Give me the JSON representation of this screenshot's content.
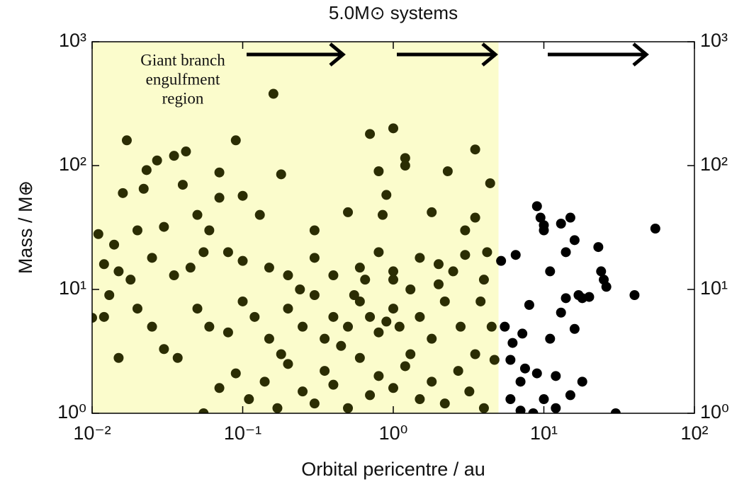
{
  "chart_data": {
    "type": "scatter",
    "title": "5.0M⊙ systems",
    "x_label": "Orbital pericentre / au",
    "y_label": "Mass / M⊕",
    "annotation": [
      "Giant branch",
      "engulfment",
      "region"
    ],
    "xscale": "log",
    "yscale": "log",
    "xlim": [
      0.01,
      100
    ],
    "ylim": [
      1,
      1000
    ],
    "xticks": [
      {
        "value": 0.01,
        "label": "10⁻²"
      },
      {
        "value": 0.1,
        "label": "10⁻¹"
      },
      {
        "value": 1,
        "label": "10⁰"
      },
      {
        "value": 10,
        "label": "10¹"
      },
      {
        "value": 100,
        "label": "10²"
      }
    ],
    "yticks": [
      {
        "value": 1,
        "label": "10⁰"
      },
      {
        "value": 10,
        "label": "10¹"
      },
      {
        "value": 100,
        "label": "10²"
      },
      {
        "value": 1000,
        "label": "10³"
      }
    ],
    "shaded_region": {
      "xlim": [
        0.01,
        5
      ],
      "color": "#fbfccc"
    },
    "series": [
      {
        "color": "#2b2d03",
        "x": [
          0.16,
          0.017,
          0.09,
          0.7,
          1.0,
          0.18,
          0.027,
          0.035,
          0.042,
          0.023,
          0.07,
          0.8,
          1.2,
          1.2,
          2.3,
          3.5,
          4.4,
          0.016,
          0.022,
          0.04,
          0.07,
          0.1,
          0.13,
          0.5,
          0.9,
          1.8,
          0.85,
          3.5,
          3.0,
          0.011,
          0.014,
          0.02,
          0.03,
          0.05,
          0.06,
          0.08,
          0.012,
          0.015,
          0.018,
          0.025,
          0.035,
          0.045,
          0.055,
          0.1,
          0.15,
          0.2,
          0.3,
          0.4,
          0.6,
          0.8,
          1.0,
          1.5,
          2.0,
          2.5,
          3.0,
          4.0,
          0.013,
          0.012,
          0.01,
          0.02,
          0.025,
          0.03,
          0.037,
          0.015,
          0.05,
          0.06,
          0.08,
          0.1,
          0.12,
          0.15,
          0.18,
          0.2,
          0.25,
          0.3,
          0.35,
          0.4,
          0.5,
          0.6,
          0.7,
          0.8,
          0.9,
          1.0,
          1.1,
          1.3,
          1.5,
          1.8,
          2.2,
          2.8,
          3.5,
          4.5,
          0.07,
          0.09,
          0.11,
          0.14,
          0.17,
          0.2,
          0.25,
          0.3,
          0.35,
          0.4,
          0.5,
          0.6,
          0.7,
          0.8,
          1.0,
          1.2,
          1.5,
          1.8,
          2.2,
          2.7,
          3.2,
          4.0,
          4.7,
          0.055,
          0.45,
          0.55,
          1.3,
          2.0,
          0.24,
          0.65,
          3.8,
          4.2,
          0.3,
          1.0
        ],
        "values": [
          380,
          160,
          160,
          180,
          200,
          85,
          110,
          120,
          130,
          92,
          88,
          90,
          100,
          115,
          90,
          135,
          72,
          60,
          65,
          70,
          55,
          57,
          40,
          42,
          58,
          42,
          40,
          38,
          30,
          28,
          23,
          30,
          32,
          40,
          30,
          20,
          16,
          14,
          12,
          18,
          13,
          15,
          20,
          17,
          15,
          13,
          18,
          13,
          15,
          20,
          14,
          18,
          16,
          14,
          19,
          12,
          9,
          6,
          5.9,
          7,
          5,
          3.3,
          2.8,
          2.8,
          7,
          5,
          4.5,
          8,
          6,
          4,
          3,
          7,
          5,
          9,
          4,
          6,
          5,
          8,
          6,
          4.5,
          5.5,
          7,
          5,
          3,
          6,
          4,
          8,
          5,
          3,
          5,
          1.6,
          2.1,
          1.3,
          1.8,
          1.1,
          2.5,
          1.5,
          1.2,
          2.2,
          1.7,
          1.1,
          2.8,
          1.4,
          2,
          1.6,
          2.4,
          1.3,
          1.8,
          1.2,
          2.2,
          1.5,
          1.1,
          2.7,
          1.0,
          3.5,
          9,
          10,
          11,
          10,
          12,
          8,
          20,
          30,
          12
        ]
      },
      {
        "color": "#000000",
        "x": [
          5.2,
          5.5,
          6,
          6.5,
          7,
          7.5,
          8,
          9,
          9.5,
          10,
          11,
          12,
          13,
          14,
          15,
          16,
          14,
          17,
          18,
          20,
          13,
          15,
          18,
          7,
          8.5,
          10,
          6,
          23,
          24,
          25,
          26,
          30,
          40,
          55,
          12,
          6.2,
          7.2,
          11,
          9,
          16,
          10
        ],
        "values": [
          17,
          5,
          2.7,
          19,
          1.8,
          2.3,
          7.5,
          47,
          38,
          30,
          14,
          2,
          34,
          20,
          38,
          25,
          8.5,
          9,
          8.5,
          8.7,
          6.5,
          1.4,
          1.8,
          1.05,
          1.0,
          1.3,
          1.3,
          22,
          14,
          12,
          10.5,
          1.0,
          9,
          31,
          1.1,
          3.7,
          4.4,
          4,
          2.1,
          4.8,
          33
        ]
      }
    ]
  }
}
